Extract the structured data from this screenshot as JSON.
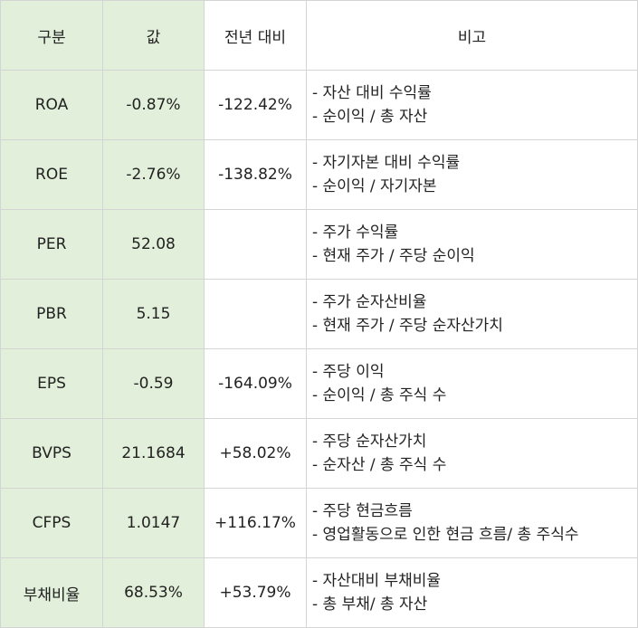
{
  "header": [
    "구분",
    "값",
    "전년 대비",
    "비고"
  ],
  "rows": [
    {
      "label": "ROA",
      "value": "-0.87%",
      "yoy": "-122.42%",
      "notes": [
        "- 자산 대비 수익률",
        "- 순이익 / 총 자산"
      ]
    },
    {
      "label": "ROE",
      "value": "-2.76%",
      "yoy": "-138.82%",
      "notes": [
        "- 자기자본 대비 수익률",
        "- 순이익 / 자기자본"
      ]
    },
    {
      "label": "PER",
      "value": "52.08",
      "yoy": "",
      "notes": [
        "- 주가 수익률",
        "- 현재 주가 / 주당 순이익"
      ]
    },
    {
      "label": "PBR",
      "value": "5.15",
      "yoy": "",
      "notes": [
        "- 주가 순자산비율",
        "- 현재 주가 / 주당 순자산가치"
      ]
    },
    {
      "label": "EPS",
      "value": "-0.59",
      "yoy": "-164.09%",
      "notes": [
        "- 주당 이익",
        "- 순이익 / 총 주식 수"
      ]
    },
    {
      "label": "BVPS",
      "value": "21.1684",
      "yoy": "+58.02%",
      "notes": [
        "- 주당 순자산가치",
        "- 순자산 / 총 주식 수"
      ]
    },
    {
      "label": "CFPS",
      "value": "1.0147",
      "yoy": "+116.17%",
      "notes": [
        "- 주당 현금흐름",
        "- 영업활동으로 인한 현금 흐름/ 총 주식수"
      ]
    },
    {
      "label": "부채비율",
      "value": "68.53%",
      "yoy": "+53.79%",
      "notes": [
        "- 자산대비 부채비율",
        "- 총 부채/ 총 자산"
      ]
    }
  ],
  "colors": {
    "shade": "#e2efda",
    "border": "#d4d4d4"
  }
}
